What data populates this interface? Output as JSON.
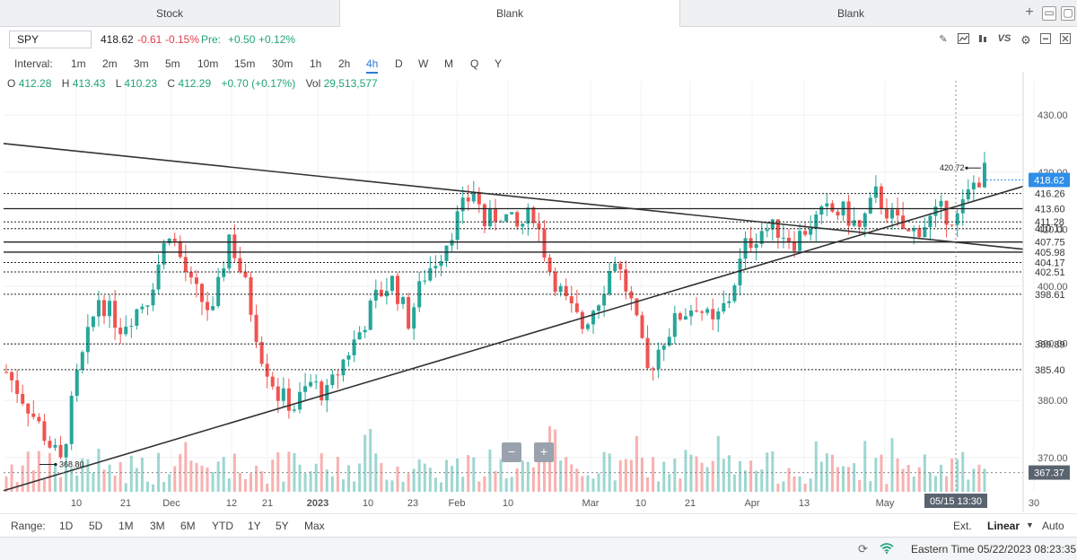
{
  "tabs": [
    {
      "label": "Stock",
      "active": false
    },
    {
      "label": "Blank",
      "active": true
    },
    {
      "label": "Blank",
      "active": false
    }
  ],
  "window_buttons": [
    "+",
    "▭",
    "▢"
  ],
  "symbol": {
    "value": "SPY",
    "last": "418.62",
    "change": "-0.61",
    "change_pct": "-0.15%",
    "pre_label": "Pre:",
    "pre_change": "+0.50",
    "pre_change_pct": "+0.12%"
  },
  "toolbar_icons": [
    "pencil-icon",
    "chart-icon",
    "candle-icon",
    "vs-icon",
    "gear-icon",
    "minimize-icon",
    "close-icon"
  ],
  "toolbar_vs": "VS",
  "intervals": {
    "label": "Interval:",
    "items": [
      "1m",
      "2m",
      "3m",
      "5m",
      "10m",
      "15m",
      "30m",
      "1h",
      "2h",
      "4h",
      "D",
      "W",
      "M",
      "Q",
      "Y"
    ],
    "selected": "4h"
  },
  "ohlc": {
    "o_label": "O",
    "o": "412.28",
    "h_label": "H",
    "h": "413.43",
    "l_label": "L",
    "l": "410.23",
    "c_label": "C",
    "c": "412.29",
    "chg": "+0.70 (+0.17%)",
    "vol_label": "Vol",
    "vol": "29,513,577"
  },
  "range": {
    "label": "Range:",
    "items": [
      "1D",
      "5D",
      "1M",
      "3M",
      "6M",
      "YTD",
      "1Y",
      "5Y",
      "Max"
    ],
    "ext": "Ext.",
    "scale": "Linear",
    "auto": "Auto"
  },
  "zoom": {
    "minus": "−",
    "plus": "+"
  },
  "status": {
    "timezone_text": "Eastern Time 05/22/2023 08:23:35"
  },
  "colors": {
    "up": "#26a69a",
    "down": "#ef5350",
    "accent": "#2e7bd6",
    "price_tag": "#2e8ee8"
  },
  "chart_data": {
    "type": "candlestick",
    "symbol": "SPY",
    "interval": "4h",
    "y_ticks": [
      430,
      420,
      410,
      400,
      390,
      380,
      370
    ],
    "x_tick_labels": [
      "10",
      "21",
      "Dec",
      "12",
      "21",
      "2023",
      "10",
      "23",
      "Feb",
      "10",
      "Mar",
      "10",
      "21",
      "Apr",
      "13",
      "May",
      "30"
    ],
    "y_range": [
      364,
      436
    ],
    "last_price": 418.62,
    "crosshair_price": 367.37,
    "crosshair_time": "05/15 13:30",
    "high_annotation": 420.72,
    "low_annotation": 368.8,
    "horizontal_levels": [
      416.26,
      413.6,
      411.28,
      410.11,
      407.75,
      405.98,
      404.17,
      402.51,
      398.61,
      389.89,
      385.4
    ],
    "horizontal_level_labels": [
      "416.26",
      "413.60",
      "411.28",
      "410.11",
      "407.75",
      "405.98",
      "404.17",
      "402.51",
      "398.61",
      "389.89",
      "385.40"
    ],
    "trendlines": [
      {
        "from": {
          "x_index": 0,
          "price": 425.0
        },
        "to": {
          "x_index": 187,
          "price": 406.5
        }
      },
      {
        "from": {
          "x_index": 0,
          "price": 364.2
        },
        "to": {
          "x_index": 187,
          "price": 417.5
        }
      }
    ],
    "price_anchors": [
      [
        0,
        385
      ],
      [
        4,
        379
      ],
      [
        7,
        374
      ],
      [
        10,
        369
      ],
      [
        13,
        384
      ],
      [
        17,
        398
      ],
      [
        21,
        393
      ],
      [
        26,
        398
      ],
      [
        30,
        410
      ],
      [
        34,
        400
      ],
      [
        38,
        395
      ],
      [
        41,
        409
      ],
      [
        44,
        400
      ],
      [
        47,
        388
      ],
      [
        50,
        381
      ],
      [
        53,
        379
      ],
      [
        56,
        383
      ],
      [
        59,
        381
      ],
      [
        62,
        387
      ],
      [
        65,
        392
      ],
      [
        68,
        398
      ],
      [
        71,
        401
      ],
      [
        74,
        394
      ],
      [
        77,
        402
      ],
      [
        80,
        406
      ],
      [
        83,
        412
      ],
      [
        86,
        417
      ],
      [
        88,
        411
      ],
      [
        91,
        413
      ],
      [
        94,
        410
      ],
      [
        97,
        413
      ],
      [
        100,
        403
      ],
      [
        103,
        397
      ],
      [
        106,
        393
      ],
      [
        109,
        398
      ],
      [
        112,
        405
      ],
      [
        115,
        397
      ],
      [
        118,
        385
      ],
      [
        121,
        391
      ],
      [
        124,
        395
      ],
      [
        127,
        397
      ],
      [
        130,
        393
      ],
      [
        133,
        398
      ],
      [
        136,
        407
      ],
      [
        139,
        410
      ],
      [
        142,
        410
      ],
      [
        145,
        408
      ],
      [
        148,
        411
      ],
      [
        151,
        413
      ],
      [
        154,
        413
      ],
      [
        157,
        410
      ],
      [
        160,
        416
      ],
      [
        163,
        412
      ],
      [
        166,
        409
      ],
      [
        169,
        411
      ],
      [
        172,
        413
      ],
      [
        175,
        412
      ],
      [
        178,
        418
      ],
      [
        180,
        420
      ]
    ],
    "candle_count": 181
  }
}
